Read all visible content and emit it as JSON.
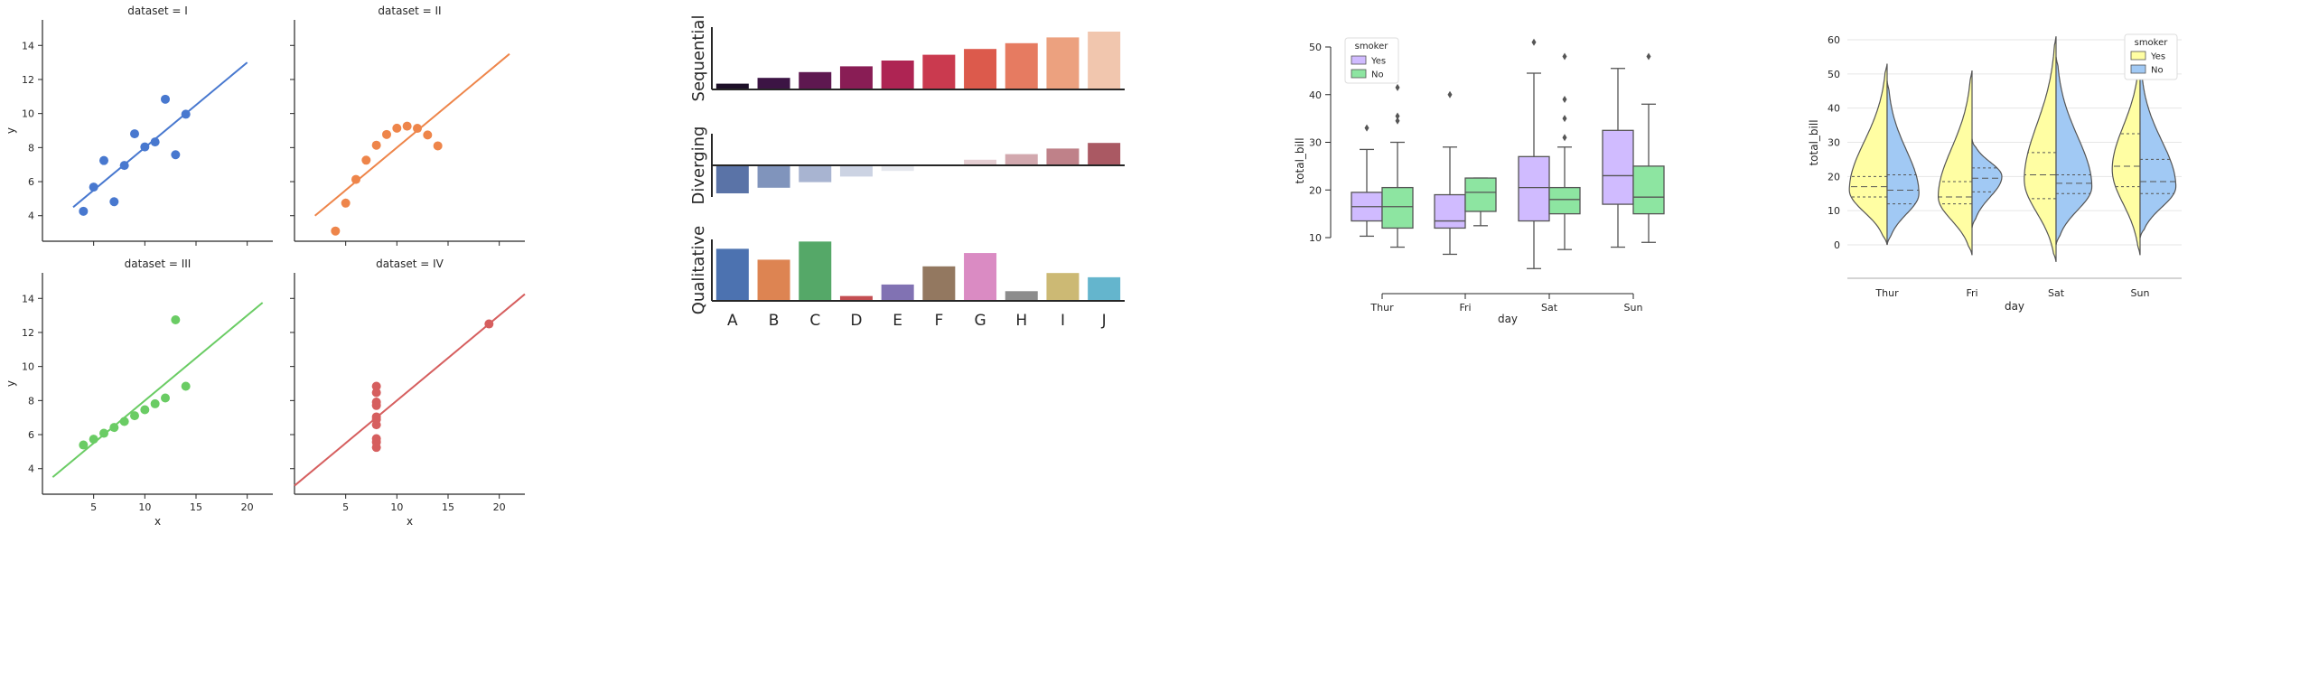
{
  "chart_data": [
    {
      "type": "scatter",
      "facets": [
        {
          "title": "dataset = I",
          "color": "#4878cf",
          "x": [
            10,
            8,
            13,
            9,
            11,
            14,
            6,
            4,
            12,
            7,
            5
          ],
          "y": [
            8.04,
            6.95,
            7.58,
            8.81,
            8.33,
            9.96,
            7.24,
            4.26,
            10.84,
            4.82,
            5.68
          ],
          "line": [
            [
              3.0,
              4.5
            ],
            [
              20.0,
              13.0
            ]
          ]
        },
        {
          "title": "dataset = II",
          "color": "#ee854a",
          "x": [
            10,
            8,
            13,
            9,
            11,
            14,
            6,
            4,
            12,
            7,
            5
          ],
          "y": [
            9.14,
            8.14,
            8.74,
            8.77,
            9.26,
            8.1,
            6.13,
            3.1,
            9.13,
            7.26,
            4.74
          ],
          "line": [
            [
              2.0,
              4.0
            ],
            [
              21.0,
              13.5
            ]
          ]
        },
        {
          "title": "dataset = III",
          "color": "#6acc64",
          "x": [
            10,
            8,
            13,
            9,
            11,
            14,
            6,
            4,
            12,
            7,
            5
          ],
          "y": [
            7.46,
            6.77,
            12.74,
            7.11,
            7.81,
            8.84,
            6.08,
            5.39,
            8.15,
            6.42,
            5.73
          ],
          "line": [
            [
              1.0,
              3.5
            ],
            [
              21.5,
              13.75
            ]
          ]
        },
        {
          "title": "dataset = IV",
          "color": "#d65f5f",
          "x": [
            8,
            8,
            8,
            8,
            8,
            8,
            8,
            19,
            8,
            8,
            8
          ],
          "y": [
            6.58,
            5.76,
            7.71,
            8.84,
            8.47,
            7.04,
            5.25,
            12.5,
            5.56,
            7.91,
            6.89
          ],
          "line": [
            [
              0.0,
              3.0
            ],
            [
              22.5,
              14.25
            ]
          ]
        }
      ],
      "xlabel": "x",
      "ylabel": "y",
      "xticks": [
        5,
        10,
        15,
        20
      ],
      "yticks": [
        4,
        6,
        8,
        10,
        12,
        14
      ],
      "xlim": [
        0,
        22.5
      ],
      "ylim": [
        2.5,
        15.5
      ]
    },
    {
      "type": "bar",
      "categories": [
        "A",
        "B",
        "C",
        "D",
        "E",
        "F",
        "G",
        "H",
        "I",
        "J"
      ],
      "panels": [
        {
          "ylabel": "Sequential",
          "values": [
            1,
            2,
            3,
            4,
            5,
            6,
            7,
            8,
            9,
            10
          ],
          "colors": [
            "#1d1028",
            "#3c1444",
            "#5e1850",
            "#891d55",
            "#ae2453",
            "#ca3a4f",
            "#dc5a4c",
            "#e67b61",
            "#eca17f",
            "#f1c6ae"
          ]
        },
        {
          "ylabel": "Diverging",
          "values": [
            -5,
            -4,
            -3,
            -2,
            -1,
            0,
            1,
            2,
            3,
            4
          ],
          "colors": [
            "#5a73a7",
            "#8094bc",
            "#a8b4d1",
            "#ccd3e3",
            "#e6e8ee",
            "#f2f2f2",
            "#e5ced2",
            "#d2a8ae",
            "#bf8189",
            "#aa5963"
          ]
        },
        {
          "ylabel": "Qualitative",
          "values": [
            8.6,
            6.8,
            9.8,
            0.8,
            2.7,
            5.7,
            7.9,
            1.6,
            4.6,
            3.9
          ],
          "colors": [
            "#4c72b0",
            "#dd8452",
            "#55a868",
            "#c44e52",
            "#8172b3",
            "#937860",
            "#da8bc3",
            "#8c8c8c",
            "#ccb974",
            "#64b5cd"
          ]
        }
      ]
    },
    {
      "type": "box",
      "categories": [
        "Thur",
        "Fri",
        "Sat",
        "Sun"
      ],
      "xlabel": "day",
      "ylabel": "total_bill",
      "yticks": [
        10,
        20,
        30,
        40,
        50
      ],
      "ylim": [
        3,
        52
      ],
      "legend_title": "smoker",
      "legend_position": "top-left",
      "series": [
        {
          "name": "Yes",
          "color": "#d0bbff",
          "boxes": [
            {
              "whislo": 10.3,
              "q1": 13.5,
              "med": 16.5,
              "q3": 19.5,
              "whishi": 28.5,
              "fliers": [
                33
              ]
            },
            {
              "whislo": 6.5,
              "q1": 12,
              "med": 13.5,
              "q3": 19,
              "whishi": 29,
              "fliers": [
                40
              ]
            },
            {
              "whislo": 3.5,
              "q1": 13.5,
              "med": 20.5,
              "q3": 27,
              "whishi": 44.5,
              "fliers": [
                51
              ]
            },
            {
              "whislo": 8,
              "q1": 17,
              "med": 23,
              "q3": 32.5,
              "whishi": 45.5,
              "fliers": []
            }
          ]
        },
        {
          "name": "No",
          "color": "#8de5a1",
          "boxes": [
            {
              "whislo": 8,
              "q1": 12,
              "med": 16.5,
              "q3": 20.5,
              "whishi": 30,
              "fliers": [
                34.5,
                35.5,
                41.5
              ]
            },
            {
              "whislo": 12.5,
              "q1": 15.5,
              "med": 19.5,
              "q3": 22.5,
              "whishi": 22.5,
              "fliers": []
            },
            {
              "whislo": 7.5,
              "q1": 15,
              "med": 18,
              "q3": 20.5,
              "whishi": 29,
              "fliers": [
                31,
                35,
                39,
                48
              ]
            },
            {
              "whislo": 9,
              "q1": 15,
              "med": 18.5,
              "q3": 25,
              "whishi": 38,
              "fliers": [
                48
              ]
            }
          ]
        }
      ]
    },
    {
      "type": "violin",
      "categories": [
        "Thur",
        "Fri",
        "Sat",
        "Sun"
      ],
      "xlabel": "day",
      "ylabel": "total_bill",
      "yticks": [
        0,
        10,
        20,
        30,
        40,
        50,
        60
      ],
      "ylim": [
        -8,
        63
      ],
      "grid": true,
      "legend_title": "smoker",
      "legend_position": "top-right",
      "series": [
        {
          "name": "Yes",
          "color": "#fffea3",
          "violins": [
            {
              "lo": 0,
              "hi": 53,
              "q1": 14,
              "med": 17,
              "q3": 20,
              "peak": 16,
              "width": 0.95
            },
            {
              "lo": -3,
              "hi": 51,
              "q1": 12,
              "med": 14,
              "q3": 18.5,
              "peak": 14,
              "width": 0.85
            },
            {
              "lo": -5,
              "hi": 61,
              "q1": 13.5,
              "med": 20.5,
              "q3": 27,
              "peak": 19,
              "width": 0.8
            },
            {
              "lo": -3,
              "hi": 55,
              "q1": 17,
              "med": 23,
              "q3": 32.5,
              "peak": 22,
              "width": 0.7
            }
          ]
        },
        {
          "name": "No",
          "color": "#a1c9f4",
          "violins": [
            {
              "lo": 0,
              "hi": 48,
              "q1": 12,
              "med": 16,
              "q3": 20.5,
              "peak": 15,
              "width": 0.8
            },
            {
              "lo": 5,
              "hi": 31,
              "q1": 15.5,
              "med": 19.5,
              "q3": 22.5,
              "peak": 20,
              "width": 0.75
            },
            {
              "lo": 0,
              "hi": 55,
              "q1": 15,
              "med": 18,
              "q3": 20.5,
              "peak": 17,
              "width": 0.9
            },
            {
              "lo": 2,
              "hi": 52,
              "q1": 15,
              "med": 18.5,
              "q3": 25,
              "peak": 17,
              "width": 0.9
            }
          ]
        }
      ]
    }
  ]
}
